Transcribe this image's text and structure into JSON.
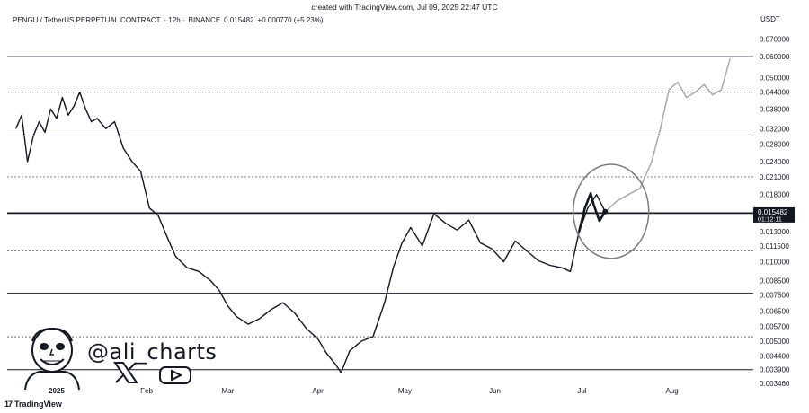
{
  "header": {
    "created": "created with TradingView.com, Jul 09, 2025 22:47 UTC",
    "pair": "PENGU / TetherUS PERPETUAL CONTRACT",
    "interval": "· 12h ·",
    "exchange": "BINANCE",
    "last_price": "0.015482",
    "change": "+0.000770 (+5.23%)"
  },
  "branding": {
    "handle": "@ali_charts",
    "platform": "TradingView",
    "icons": [
      "x-icon",
      "youtube-icon",
      "avatar-caricature",
      "tradingview-logo"
    ]
  },
  "price_marker": {
    "price": "0.015482",
    "countdown": "01:12:11"
  },
  "chart_data": {
    "type": "line",
    "title": "",
    "xlabel": "",
    "ylabel": "USDT",
    "y_scale": "log",
    "ylim": [
      0.00346,
      0.0778
    ],
    "y_ticks": [
      "0.070000",
      "0.060000",
      "0.050000",
      "0.044000",
      "0.038000",
      "0.032000",
      "0.028000",
      "0.024000",
      "0.021000",
      "0.018000",
      "0.015482",
      "0.013000",
      "0.011500",
      "0.010000",
      "0.008500",
      "0.007500",
      "0.006500",
      "0.005700",
      "0.005000",
      "0.004400",
      "0.003900",
      "0.003460"
    ],
    "x_ticks": [
      "2025",
      "Feb",
      "Mar",
      "Apr",
      "May",
      "Jun",
      "Jul",
      "Aug"
    ],
    "horizontal_levels": [
      {
        "price": 0.06,
        "style": "solid"
      },
      {
        "price": 0.044,
        "style": "dotted"
      },
      {
        "price": 0.03,
        "style": "solid"
      },
      {
        "price": 0.021,
        "style": "dotted"
      },
      {
        "price": 0.0153,
        "style": "solid-bold"
      },
      {
        "price": 0.011,
        "style": "dotted"
      },
      {
        "price": 0.0076,
        "style": "solid"
      },
      {
        "price": 0.0052,
        "style": "dotted"
      },
      {
        "price": 0.0039,
        "style": "solid"
      }
    ],
    "series": [
      {
        "style": "solid-black",
        "x": [
          "2024-12-18",
          "2024-12-20",
          "2024-12-22",
          "2024-12-24",
          "2024-12-26",
          "2024-12-28",
          "2024-12-30",
          "2025-01-01",
          "2025-01-03",
          "2025-01-05",
          "2025-01-07",
          "2025-01-09",
          "2025-01-11",
          "2025-01-13",
          "2025-01-15",
          "2025-01-18",
          "2025-01-21",
          "2025-01-24",
          "2025-01-27",
          "2025-01-30",
          "2025-02-02",
          "2025-02-05",
          "2025-02-08",
          "2025-02-11",
          "2025-02-15",
          "2025-02-19",
          "2025-02-23",
          "2025-02-26",
          "2025-03-01",
          "2025-03-04",
          "2025-03-08",
          "2025-03-12",
          "2025-03-16",
          "2025-03-20",
          "2025-03-24",
          "2025-03-28",
          "2025-04-01",
          "2025-04-04",
          "2025-04-07",
          "2025-04-09",
          "2025-04-12",
          "2025-04-16",
          "2025-04-20",
          "2025-04-24",
          "2025-04-27",
          "2025-04-30",
          "2025-05-03",
          "2025-05-07",
          "2025-05-11",
          "2025-05-15",
          "2025-05-19",
          "2025-05-23",
          "2025-05-27",
          "2025-05-31",
          "2025-06-04",
          "2025-06-08",
          "2025-06-12",
          "2025-06-16",
          "2025-06-20",
          "2025-06-24",
          "2025-06-27",
          "2025-06-30",
          "2025-07-03",
          "2025-07-06",
          "2025-07-09"
        ],
        "y": [
          0.032,
          0.036,
          0.024,
          0.03,
          0.034,
          0.031,
          0.038,
          0.035,
          0.042,
          0.036,
          0.039,
          0.044,
          0.038,
          0.034,
          0.035,
          0.032,
          0.034,
          0.027,
          0.024,
          0.022,
          0.016,
          0.015,
          0.0125,
          0.0105,
          0.0095,
          0.0092,
          0.0085,
          0.0078,
          0.0068,
          0.0062,
          0.0058,
          0.0061,
          0.0066,
          0.007,
          0.0064,
          0.0056,
          0.0051,
          0.0045,
          0.0041,
          0.0038,
          0.0046,
          0.005,
          0.0052,
          0.007,
          0.0095,
          0.0118,
          0.0135,
          0.0115,
          0.0152,
          0.014,
          0.0132,
          0.0144,
          0.0118,
          0.0112,
          0.01,
          0.012,
          0.011,
          0.0101,
          0.0097,
          0.0095,
          0.0092,
          0.013,
          0.016,
          0.018,
          0.0155
        ]
      },
      {
        "style": "solid-black-bold",
        "x": [
          "2025-06-30",
          "2025-07-02",
          "2025-07-04",
          "2025-07-05",
          "2025-07-07",
          "2025-07-09"
        ],
        "y": [
          0.013,
          0.016,
          0.0182,
          0.0165,
          0.0143,
          0.0155
        ]
      },
      {
        "style": "projection-grey",
        "x": [
          "2025-07-09",
          "2025-07-13",
          "2025-07-17",
          "2025-07-21",
          "2025-07-25",
          "2025-07-28",
          "2025-07-31",
          "2025-08-03",
          "2025-08-06",
          "2025-08-09",
          "2025-08-12",
          "2025-08-15",
          "2025-08-18",
          "2025-08-21"
        ],
        "y": [
          0.0155,
          0.017,
          0.018,
          0.019,
          0.024,
          0.032,
          0.045,
          0.048,
          0.042,
          0.044,
          0.047,
          0.043,
          0.045,
          0.059
        ]
      }
    ],
    "annotations": [
      {
        "type": "ellipse",
        "around_x": [
          "2025-06-28",
          "2025-07-24"
        ],
        "around_y": [
          0.0115,
          0.021
        ]
      }
    ],
    "grid": false,
    "legend": "none"
  }
}
